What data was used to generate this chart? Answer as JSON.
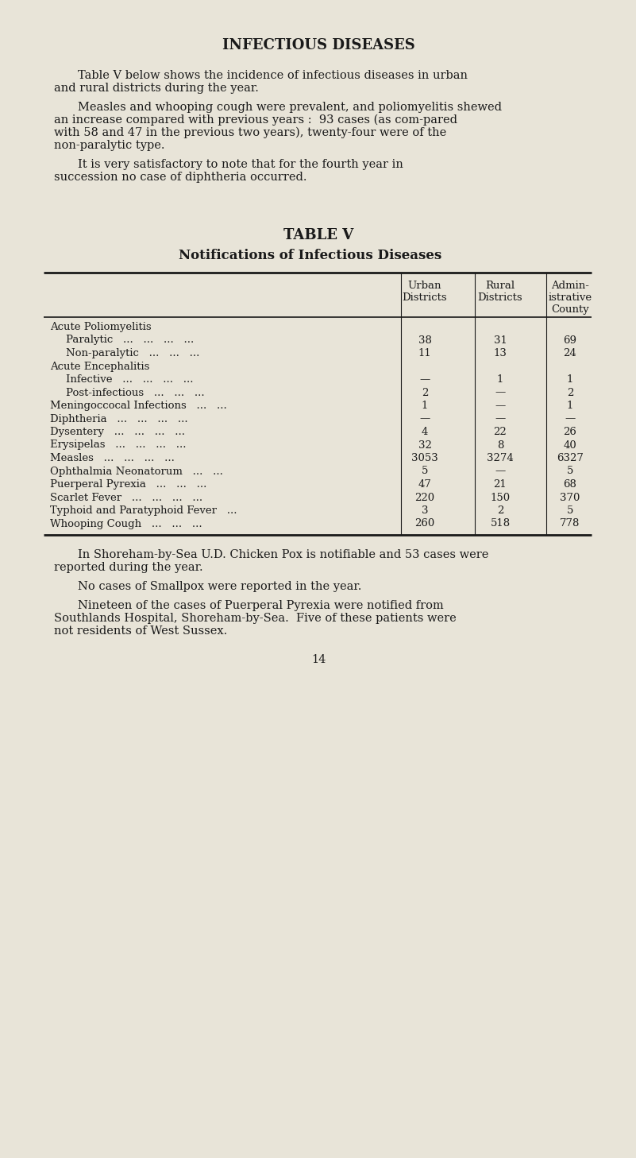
{
  "bg_color": "#e8e4d8",
  "text_color": "#1a1a1a",
  "page_title": "INFECTIOUS DISEASES",
  "para1": "Table V below shows the incidence of infectious diseases in urban and rural districts during the year.",
  "para2": "Measles and whooping cough were prevalent, and poliomyelitis shewed an increase compared with previous years :  93 cases (as com-\npared with 58 and 47 in the previous two years), twenty-four were of\nthe non-paralytic type.",
  "para3": "It is very satisfactory to note that for the fourth year in succession no case of diphtheria occurred.",
  "table_title": "TABLE V",
  "table_subtitle": "Notifications of Infectious Diseases",
  "col_headers": [
    "Urban\nDistricts",
    "Rural\nDistricts",
    "Admin-\nistrative\nCounty"
  ],
  "rows": [
    {
      "label": "Acute Poliomyelitis",
      "indent": 0,
      "urban": "",
      "rural": "",
      "county": ""
    },
    {
      "label": "Paralytic   ...   ...   ...   ...",
      "indent": 1,
      "urban": "38",
      "rural": "31",
      "county": "69"
    },
    {
      "label": "Non-paralytic   ...   ...   ...",
      "indent": 1,
      "urban": "11",
      "rural": "13",
      "county": "24"
    },
    {
      "label": "Acute Encephalitis",
      "indent": 0,
      "urban": "",
      "rural": "",
      "county": ""
    },
    {
      "label": "Infective   ...   ...   ...   ...",
      "indent": 1,
      "urban": "—",
      "rural": "1",
      "county": "1"
    },
    {
      "label": "Post-infectious   ...   ...   ...",
      "indent": 1,
      "urban": "2",
      "rural": "—",
      "county": "2"
    },
    {
      "label": "Meningoccocal Infections   ...   ...",
      "indent": 0,
      "urban": "1",
      "rural": "—",
      "county": "1"
    },
    {
      "label": "Diphtheria   ...   ...   ...   ...",
      "indent": 0,
      "urban": "—",
      "rural": "—",
      "county": "—"
    },
    {
      "label": "Dysentery   ...   ...   ...   ...",
      "indent": 0,
      "urban": "4",
      "rural": "22",
      "county": "26"
    },
    {
      "label": "Erysipelas   ...   ...   ...   ...",
      "indent": 0,
      "urban": "32",
      "rural": "8",
      "county": "40"
    },
    {
      "label": "Measles   ...   ...   ...   ...",
      "indent": 0,
      "urban": "3053",
      "rural": "3274",
      "county": "6327"
    },
    {
      "label": "Ophthalmia Neonatorum   ...   ...",
      "indent": 0,
      "urban": "5",
      "rural": "—",
      "county": "5"
    },
    {
      "label": "Puerperal Pyrexia   ...   ...   ...",
      "indent": 0,
      "urban": "47",
      "rural": "21",
      "county": "68"
    },
    {
      "label": "Scarlet Fever   ...   ...   ...   ...",
      "indent": 0,
      "urban": "220",
      "rural": "150",
      "county": "370"
    },
    {
      "label": "Typhoid and Paratyphoid Fever   ...",
      "indent": 0,
      "urban": "3",
      "rural": "2",
      "county": "5"
    },
    {
      "label": "Whooping Cough   ...   ...   ...",
      "indent": 0,
      "urban": "260",
      "rural": "518",
      "county": "778"
    }
  ],
  "footer1": "In Shoreham-by-Sea U.D. Chicken Pox is notifiable and 53 cases were reported during the year.",
  "footer2": "No cases of Smallpox were reported in the year.",
  "footer3": "Nineteen of the cases of Puerperal Pyrexia were notified from Southlands Hospital, Shoreham-by-Sea.  Five of these patients were not residents of West Sussex.",
  "page_number": "14"
}
